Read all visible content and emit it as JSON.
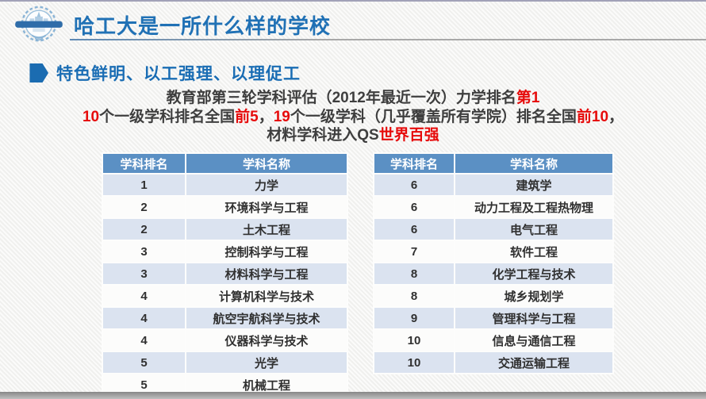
{
  "page": {
    "title": "哈工大是一所什么样的学校",
    "section_heading": "特色鲜明、以工强理、以理促工"
  },
  "intro": {
    "lines": [
      {
        "segments": [
          {
            "text": "教育部第三轮学科评估（2012年最近一次）力学排名",
            "red": false
          },
          {
            "text": "第1",
            "red": true
          }
        ]
      },
      {
        "segments": [
          {
            "text": "10",
            "red": true
          },
          {
            "text": "个一级学科排名全国",
            "red": false
          },
          {
            "text": "前5",
            "red": true
          },
          {
            "text": "，",
            "red": false
          },
          {
            "text": "19",
            "red": true
          },
          {
            "text": "个一级学科（几乎覆盖所有学院）排名全国",
            "red": false
          },
          {
            "text": "前10",
            "red": true
          },
          {
            "text": "，",
            "red": false
          }
        ]
      },
      {
        "segments": [
          {
            "text": "材料学科进入QS",
            "red": false
          },
          {
            "text": "世界百强",
            "red": true
          }
        ]
      }
    ]
  },
  "tables": {
    "columns": [
      "学科排名",
      "学科名称"
    ],
    "left": {
      "rows": [
        [
          "1",
          "力学"
        ],
        [
          "2",
          "环境科学与工程"
        ],
        [
          "2",
          "土木工程"
        ],
        [
          "3",
          "控制科学与工程"
        ],
        [
          "3",
          "材料科学与工程"
        ],
        [
          "4",
          "计算机科学与技术"
        ],
        [
          "4",
          "航空宇航科学与技术"
        ],
        [
          "4",
          "仪器科学与技术"
        ],
        [
          "5",
          "光学"
        ],
        [
          "5",
          "机械工程"
        ]
      ]
    },
    "right": {
      "rows": [
        [
          "6",
          "建筑学"
        ],
        [
          "6",
          "动力工程及工程热物理"
        ],
        [
          "6",
          "电气工程"
        ],
        [
          "7",
          "软件工程"
        ],
        [
          "8",
          "化学工程与技术"
        ],
        [
          "8",
          "城乡规划学"
        ],
        [
          "9",
          "管理科学与工程"
        ],
        [
          "10",
          "信息与通信工程"
        ],
        [
          "10",
          "交通运输工程"
        ]
      ]
    }
  },
  "icons": {
    "logo": "hit-university-emblem",
    "bullet": "hexagon-bullet"
  },
  "colors": {
    "title_blue": "#2071b5",
    "heading_blue": "#1a6db4",
    "highlight_red": "#e60b0b",
    "table_header_bg": "#5b90c4",
    "band_row_bg": "#dbe3f0",
    "body_text": "#3e3e3e"
  }
}
